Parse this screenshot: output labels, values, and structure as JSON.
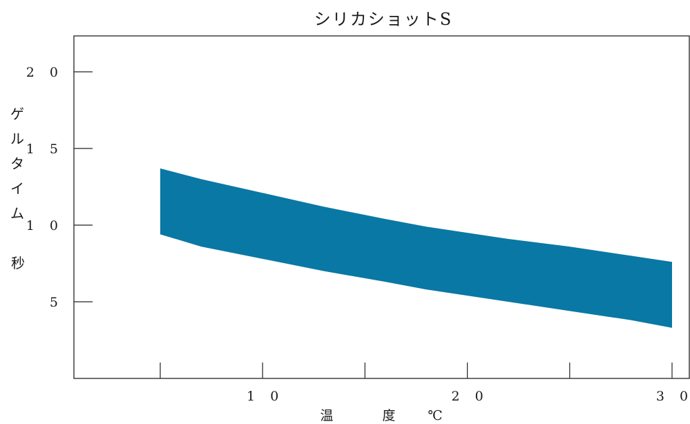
{
  "chart_data": {
    "type": "area",
    "title": "シリカショットS",
    "ylabel": "ゲルタイム",
    "yunit": "秒",
    "xlabel_parts": [
      "温",
      "度",
      "℃"
    ],
    "xlim": [
      0,
      30
    ],
    "ylim": [
      0,
      22
    ],
    "x_ticks": [
      5,
      10,
      15,
      20,
      25,
      30
    ],
    "x_tick_labels": [
      {
        "x": 10,
        "label": "1 0"
      },
      {
        "x": 20,
        "label": "2 0"
      },
      {
        "x": 30,
        "label": "3 0"
      }
    ],
    "y_ticks": [
      5,
      10,
      15,
      20
    ],
    "y_tick_labels": [
      {
        "y": 5,
        "label": "5"
      },
      {
        "y": 10,
        "label": "1 0"
      },
      {
        "y": 15,
        "label": "1 5"
      },
      {
        "y": 20,
        "label": "2 0"
      }
    ],
    "band": {
      "color": "#0a78a4",
      "x": [
        5,
        7,
        10,
        13,
        16,
        18,
        20,
        22,
        25,
        28,
        30
      ],
      "upper": [
        13.7,
        13.0,
        12.1,
        11.2,
        10.4,
        9.9,
        9.5,
        9.1,
        8.6,
        8.0,
        7.6
      ],
      "lower": [
        9.4,
        8.6,
        7.8,
        7.0,
        6.3,
        5.8,
        5.4,
        5.0,
        4.4,
        3.8,
        3.3
      ]
    },
    "grid": false
  }
}
